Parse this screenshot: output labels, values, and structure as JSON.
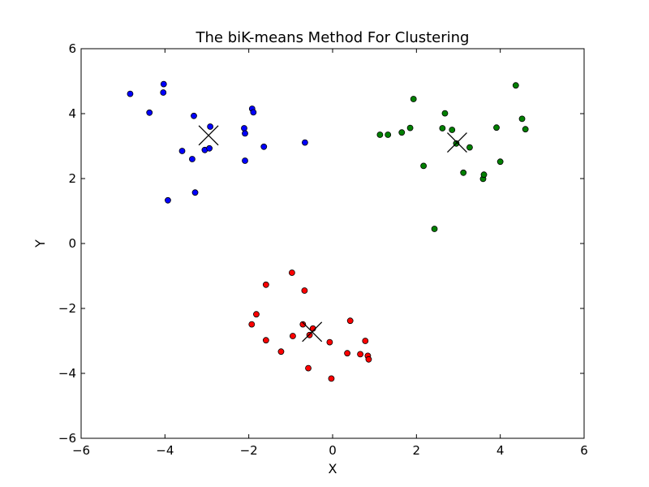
{
  "chart_data": {
    "type": "scatter",
    "title": "The biK-means Method For Clustering",
    "xlabel": "X",
    "ylabel": "Y",
    "xlim": [
      -6,
      6
    ],
    "ylim": [
      -6,
      6
    ],
    "x_ticks": [
      -6,
      -4,
      -2,
      0,
      2,
      4,
      6
    ],
    "y_ticks": [
      -6,
      -4,
      -2,
      0,
      2,
      4,
      6
    ],
    "x_tick_labels": [
      "−6",
      "−4",
      "−2",
      "0",
      "2",
      "4",
      "6"
    ],
    "y_tick_labels": [
      "−6",
      "−4",
      "−2",
      "0",
      "2",
      "4",
      "6"
    ],
    "grid": false,
    "legend": false,
    "series": [
      {
        "color": "#0000ff",
        "marker": "circle",
        "points": [
          [
            -4.83,
            4.61
          ],
          [
            -4.03,
            4.91
          ],
          [
            -4.04,
            4.65
          ],
          [
            -4.37,
            4.03
          ],
          [
            -3.93,
            1.33
          ],
          [
            -3.59,
            2.85
          ],
          [
            -3.31,
            3.93
          ],
          [
            -3.35,
            2.6
          ],
          [
            -3.28,
            1.57
          ],
          [
            -3.05,
            2.88
          ],
          [
            -2.92,
            3.6
          ],
          [
            -2.94,
            2.93
          ],
          [
            -2.11,
            3.55
          ],
          [
            -2.09,
            3.39
          ],
          [
            -2.09,
            2.55
          ],
          [
            -1.92,
            4.15
          ],
          [
            -1.89,
            4.04
          ],
          [
            -1.64,
            2.98
          ],
          [
            -0.66,
            3.11
          ]
        ]
      },
      {
        "color": "#008000",
        "marker": "circle",
        "points": [
          [
            1.13,
            3.35
          ],
          [
            1.32,
            3.35
          ],
          [
            1.65,
            3.42
          ],
          [
            1.85,
            3.56
          ],
          [
            1.93,
            4.45
          ],
          [
            2.17,
            2.39
          ],
          [
            2.43,
            0.45
          ],
          [
            2.62,
            3.55
          ],
          [
            2.68,
            4.01
          ],
          [
            2.85,
            3.5
          ],
          [
            2.95,
            3.08
          ],
          [
            3.12,
            2.18
          ],
          [
            3.27,
            2.96
          ],
          [
            3.59,
            1.99
          ],
          [
            3.61,
            2.12
          ],
          [
            3.91,
            3.57
          ],
          [
            4.0,
            2.52
          ],
          [
            4.37,
            4.87
          ],
          [
            4.52,
            3.84
          ],
          [
            4.6,
            3.52
          ]
        ]
      },
      {
        "color": "#ff0000",
        "marker": "circle",
        "points": [
          [
            -1.93,
            -2.49
          ],
          [
            -1.82,
            -2.18
          ],
          [
            -1.59,
            -1.27
          ],
          [
            -1.59,
            -2.98
          ],
          [
            -1.23,
            -3.33
          ],
          [
            -0.97,
            -0.9
          ],
          [
            -0.95,
            -2.85
          ],
          [
            -0.71,
            -2.49
          ],
          [
            -0.67,
            -1.45
          ],
          [
            -0.58,
            -3.84
          ],
          [
            -0.55,
            -2.82
          ],
          [
            -0.47,
            -2.62
          ],
          [
            -0.07,
            -3.04
          ],
          [
            -0.03,
            -4.16
          ],
          [
            0.35,
            -3.38
          ],
          [
            0.42,
            -2.38
          ],
          [
            0.66,
            -3.41
          ],
          [
            0.78,
            -3.0
          ],
          [
            0.84,
            -3.46
          ],
          [
            0.86,
            -3.57
          ]
        ]
      }
    ],
    "centroids": {
      "marker": "x",
      "color": "#000000",
      "points": [
        [
          -2.96,
          3.33
        ],
        [
          2.97,
          3.11
        ],
        [
          -0.49,
          -2.72
        ]
      ]
    }
  }
}
